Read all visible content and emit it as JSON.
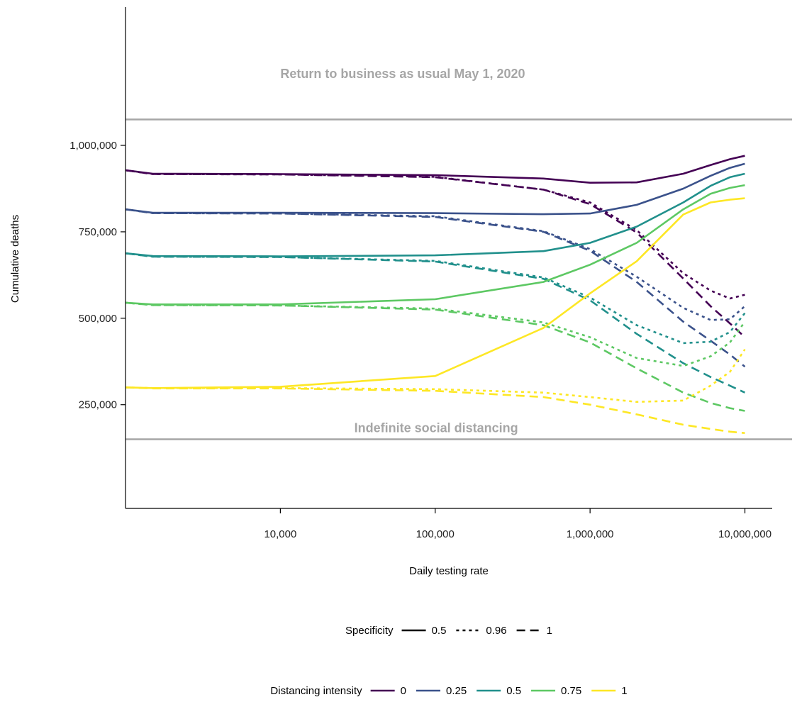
{
  "chart_data": {
    "type": "line",
    "xlabel": "Daily testing rate",
    "ylabel": "Cumulative deaths",
    "x_scale": "log10",
    "xlim": [
      1000,
      15000000
    ],
    "ylim": [
      -50000,
      1400000
    ],
    "x_ticks": [
      {
        "value": 10000,
        "label": "10,000"
      },
      {
        "value": 100000,
        "label": "100,000"
      },
      {
        "value": 1000000,
        "label": "1,000,000"
      },
      {
        "value": 10000000,
        "label": "10,000,000"
      }
    ],
    "y_ticks": [
      {
        "value": 250000,
        "label": "250,000"
      },
      {
        "value": 500000,
        "label": "500,000"
      },
      {
        "value": 750000,
        "label": "750,000"
      },
      {
        "value": 1000000,
        "label": "1,000,000"
      }
    ],
    "reference_lines": [
      {
        "y": 1075000,
        "label": "Return to business as usual May 1, 2020",
        "label_x": 10000,
        "label_y": 1195000,
        "color": "#a6a6a6"
      },
      {
        "y": 150000,
        "label": "Indefinite social distancing",
        "label_x": 30000,
        "label_y": 170000,
        "color": "#a6a6a6"
      }
    ],
    "x": [
      1000,
      1500,
      10000,
      100000,
      500000,
      1000000,
      2000000,
      4000000,
      6000000,
      8000000,
      10000000
    ],
    "legend_specificity": {
      "title": "Specificity",
      "entries": [
        {
          "label": "0.5",
          "dash": "solid"
        },
        {
          "label": "0.96",
          "dash": "dotted"
        },
        {
          "label": "1",
          "dash": "dashed"
        }
      ]
    },
    "legend_distancing": {
      "title": "Distancing intensity",
      "entries": [
        {
          "label": "0",
          "color": "#440154"
        },
        {
          "label": "0.25",
          "color": "#3b528b"
        },
        {
          "label": "0.5",
          "color": "#21908c"
        },
        {
          "label": "0.75",
          "color": "#5dc863"
        },
        {
          "label": "1",
          "color": "#fde725"
        }
      ]
    },
    "series": [
      {
        "distancing": "0",
        "specificity": "0.5",
        "values": [
          928000,
          918000,
          917000,
          914000,
          904000,
          892000,
          893000,
          918000,
          943000,
          960000,
          970000
        ]
      },
      {
        "distancing": "0",
        "specificity": "0.96",
        "values": [
          928000,
          917000,
          916000,
          909000,
          872000,
          835000,
          755000,
          630000,
          580000,
          557000,
          568000
        ]
      },
      {
        "distancing": "0",
        "specificity": "1",
        "values": [
          928000,
          917000,
          916000,
          908000,
          872000,
          830000,
          748000,
          615000,
          535000,
          485000,
          445000
        ]
      },
      {
        "distancing": "0.25",
        "specificity": "0.5",
        "values": [
          815000,
          805000,
          805000,
          804000,
          801000,
          803000,
          828000,
          875000,
          912000,
          935000,
          947000
        ]
      },
      {
        "distancing": "0.25",
        "specificity": "0.96",
        "values": [
          815000,
          804000,
          803000,
          795000,
          752000,
          700000,
          620000,
          530000,
          495000,
          497000,
          535000
        ]
      },
      {
        "distancing": "0.25",
        "specificity": "1",
        "values": [
          815000,
          804000,
          803000,
          793000,
          750000,
          695000,
          605000,
          490000,
          435000,
          395000,
          360000
        ]
      },
      {
        "distancing": "0.5",
        "specificity": "0.5",
        "values": [
          688000,
          680000,
          679000,
          682000,
          694000,
          718000,
          765000,
          835000,
          883000,
          908000,
          918000
        ]
      },
      {
        "distancing": "0.5",
        "specificity": "0.96",
        "values": [
          688000,
          678000,
          677000,
          666000,
          618000,
          560000,
          480000,
          428000,
          432000,
          460000,
          515000
        ]
      },
      {
        "distancing": "0.5",
        "specificity": "1",
        "values": [
          688000,
          678000,
          677000,
          664000,
          614000,
          552000,
          455000,
          370000,
          330000,
          305000,
          285000
        ]
      },
      {
        "distancing": "0.75",
        "specificity": "0.5",
        "values": [
          545000,
          540000,
          540000,
          555000,
          605000,
          655000,
          718000,
          815000,
          860000,
          877000,
          885000
        ]
      },
      {
        "distancing": "0.75",
        "specificity": "0.96",
        "values": [
          545000,
          538000,
          537000,
          528000,
          488000,
          445000,
          385000,
          362000,
          390000,
          430000,
          490000
        ]
      },
      {
        "distancing": "0.75",
        "specificity": "1",
        "values": [
          545000,
          538000,
          537000,
          525000,
          480000,
          430000,
          355000,
          285000,
          255000,
          240000,
          232000
        ]
      },
      {
        "distancing": "1",
        "specificity": "0.5",
        "values": [
          300000,
          298000,
          302000,
          333000,
          472000,
          572000,
          665000,
          800000,
          835000,
          843000,
          847000
        ]
      },
      {
        "distancing": "1",
        "specificity": "0.96",
        "values": [
          300000,
          298000,
          298000,
          295000,
          285000,
          272000,
          258000,
          262000,
          305000,
          345000,
          410000
        ]
      },
      {
        "distancing": "1",
        "specificity": "1",
        "values": [
          300000,
          297000,
          297000,
          290000,
          272000,
          250000,
          222000,
          192000,
          180000,
          172000,
          168000
        ]
      }
    ]
  }
}
